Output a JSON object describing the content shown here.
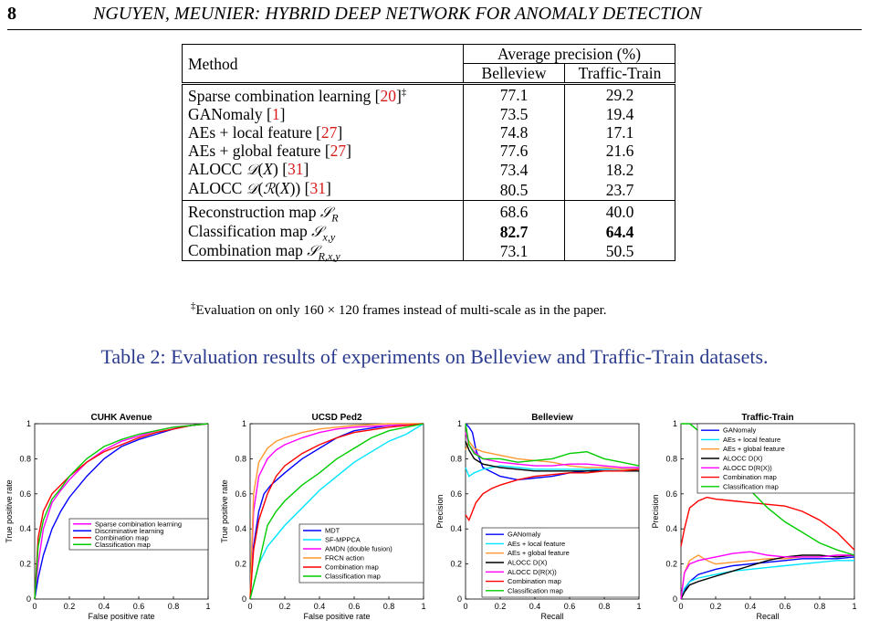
{
  "header": {
    "page_number": "8",
    "running_title": "NGUYEN, MEUNIER: HYBRID DEEP NETWORK FOR ANOMALY DETECTION"
  },
  "table": {
    "col_method": "Method",
    "col_group": "Average precision (%)",
    "col_a": "Belleview",
    "col_b": "Traffic-Train",
    "footnote_mark": "‡",
    "footnote_text": "Evaluation on only 160 × 120 frames instead of multi-scale as in the paper.",
    "rows": [
      {
        "a": "77.1",
        "b": "29.2"
      },
      {
        "a": "73.5",
        "b": "19.4"
      },
      {
        "a": "74.8",
        "b": "17.1"
      },
      {
        "a": "77.6",
        "b": "21.6"
      },
      {
        "a": "73.4",
        "b": "18.2"
      },
      {
        "a": "80.5",
        "b": "23.7"
      },
      {
        "a": "68.6",
        "b": "40.0"
      },
      {
        "a": "82.7",
        "b": "64.4"
      },
      {
        "a": "73.1",
        "b": "50.5"
      }
    ]
  },
  "caption": "Table 2: Evaluation results of experiments on Belleview and Traffic-Train datasets.",
  "chart_data": [
    {
      "type": "line",
      "title": "CUHK Avenue",
      "xlabel": "False positive rate",
      "ylabel": "True positive rate",
      "xlim": [
        0,
        1
      ],
      "ylim": [
        0,
        1
      ],
      "xticks": [
        "0",
        "0.2",
        "0.4",
        "0.6",
        "0.8",
        "1"
      ],
      "yticks": [
        "0",
        "0.2",
        "0.4",
        "0.6",
        "0.8",
        "1"
      ],
      "legend": "bottom-right",
      "series": [
        {
          "name": "Sparse combination learning",
          "color": "#ff00ff",
          "x": [
            0,
            0.02,
            0.05,
            0.1,
            0.15,
            0.2,
            0.3,
            0.4,
            0.5,
            0.6,
            0.7,
            0.8,
            0.9,
            1
          ],
          "y": [
            0,
            0.2,
            0.4,
            0.55,
            0.62,
            0.68,
            0.78,
            0.85,
            0.9,
            0.93,
            0.96,
            0.98,
            0.99,
            1
          ]
        },
        {
          "name": "Discriminative learning",
          "color": "#0000ff",
          "x": [
            0,
            0.02,
            0.05,
            0.1,
            0.15,
            0.2,
            0.3,
            0.4,
            0.5,
            0.6,
            0.7,
            0.8,
            0.9,
            1
          ],
          "y": [
            0,
            0.12,
            0.25,
            0.4,
            0.5,
            0.58,
            0.7,
            0.8,
            0.87,
            0.91,
            0.94,
            0.97,
            0.99,
            1
          ]
        },
        {
          "name": "Combination map",
          "color": "#ff0000",
          "x": [
            0,
            0.02,
            0.05,
            0.1,
            0.15,
            0.2,
            0.3,
            0.4,
            0.5,
            0.6,
            0.7,
            0.8,
            0.9,
            1
          ],
          "y": [
            0,
            0.35,
            0.5,
            0.6,
            0.65,
            0.7,
            0.78,
            0.84,
            0.88,
            0.92,
            0.95,
            0.97,
            0.99,
            1
          ]
        },
        {
          "name": "Classification map",
          "color": "#00cc00",
          "x": [
            0,
            0.02,
            0.05,
            0.1,
            0.15,
            0.2,
            0.3,
            0.4,
            0.5,
            0.6,
            0.7,
            0.8,
            0.9,
            1
          ],
          "y": [
            0,
            0.3,
            0.45,
            0.57,
            0.63,
            0.7,
            0.8,
            0.87,
            0.91,
            0.94,
            0.96,
            0.98,
            0.99,
            1
          ]
        }
      ]
    },
    {
      "type": "line",
      "title": "UCSD Ped2",
      "xlabel": "False positive rate",
      "ylabel": "True positive rate",
      "xlim": [
        0,
        1
      ],
      "ylim": [
        0,
        1
      ],
      "xticks": [
        "0",
        "0.2",
        "0.4",
        "0.6",
        "0.8",
        "1"
      ],
      "yticks": [
        "0",
        "0.2",
        "0.4",
        "0.6",
        "0.8",
        "1"
      ],
      "legend": "bottom-right",
      "series": [
        {
          "name": "MDT",
          "color": "#0000ff",
          "x": [
            0,
            0.02,
            0.05,
            0.08,
            0.12,
            0.2,
            0.3,
            0.4,
            0.5,
            0.6,
            0.8,
            1
          ],
          "y": [
            0,
            0.3,
            0.5,
            0.6,
            0.65,
            0.72,
            0.8,
            0.86,
            0.92,
            0.96,
            0.99,
            1
          ]
        },
        {
          "name": "SF-MPPCA",
          "color": "#00e5ff",
          "x": [
            0,
            0.05,
            0.1,
            0.2,
            0.3,
            0.4,
            0.5,
            0.6,
            0.7,
            0.8,
            0.9,
            1
          ],
          "y": [
            0,
            0.2,
            0.3,
            0.42,
            0.52,
            0.62,
            0.7,
            0.78,
            0.84,
            0.9,
            0.94,
            1
          ]
        },
        {
          "name": "AMDN (double fusion)",
          "color": "#ff00ff",
          "x": [
            0,
            0.02,
            0.05,
            0.1,
            0.15,
            0.2,
            0.3,
            0.4,
            0.5,
            0.6,
            0.8,
            1
          ],
          "y": [
            0,
            0.5,
            0.7,
            0.8,
            0.85,
            0.88,
            0.92,
            0.95,
            0.97,
            0.98,
            0.99,
            1
          ]
        },
        {
          "name": "FRCN action",
          "color": "#ff9933",
          "x": [
            0,
            0.02,
            0.05,
            0.1,
            0.15,
            0.2,
            0.3,
            0.4,
            0.5,
            0.6,
            0.8,
            1
          ],
          "y": [
            0,
            0.6,
            0.78,
            0.86,
            0.9,
            0.92,
            0.95,
            0.97,
            0.98,
            0.99,
            1,
            1
          ]
        },
        {
          "name": "Combination map",
          "color": "#ff0000",
          "x": [
            0,
            0.02,
            0.05,
            0.1,
            0.15,
            0.2,
            0.3,
            0.4,
            0.5,
            0.6,
            0.8,
            1
          ],
          "y": [
            0,
            0.28,
            0.45,
            0.6,
            0.7,
            0.76,
            0.83,
            0.88,
            0.92,
            0.95,
            0.98,
            1
          ]
        },
        {
          "name": "Classification map",
          "color": "#00cc00",
          "x": [
            0,
            0.05,
            0.1,
            0.15,
            0.2,
            0.3,
            0.4,
            0.5,
            0.6,
            0.7,
            0.8,
            1
          ],
          "y": [
            0,
            0.2,
            0.42,
            0.5,
            0.56,
            0.65,
            0.72,
            0.8,
            0.86,
            0.92,
            0.96,
            1
          ]
        }
      ]
    },
    {
      "type": "line",
      "title": "Belleview",
      "xlabel": "Recall",
      "ylabel": "Precision",
      "xlim": [
        0,
        1
      ],
      "ylim": [
        0,
        1
      ],
      "xticks": [
        "0",
        "0.2",
        "0.4",
        "0.6",
        "0.8",
        "1"
      ],
      "yticks": [
        "0",
        "0.2",
        "0.4",
        "0.6",
        "0.8",
        "1"
      ],
      "legend": "bottom-right",
      "series": [
        {
          "name": "GANomaly",
          "color": "#0000ff",
          "x": [
            0,
            0.02,
            0.04,
            0.06,
            0.08,
            0.1,
            0.2,
            0.3,
            0.4,
            0.5,
            0.6,
            0.7,
            0.8,
            0.9,
            1
          ],
          "y": [
            1,
            0.98,
            0.95,
            0.85,
            0.8,
            0.75,
            0.7,
            0.68,
            0.69,
            0.7,
            0.72,
            0.73,
            0.74,
            0.74,
            0.74
          ]
        },
        {
          "name": "AEs + local feature",
          "color": "#00e5ff",
          "x": [
            0,
            0.02,
            0.05,
            0.1,
            0.2,
            0.3,
            0.4,
            0.5,
            0.6,
            0.7,
            0.8,
            0.9,
            1
          ],
          "y": [
            0.75,
            0.7,
            0.72,
            0.74,
            0.76,
            0.75,
            0.74,
            0.74,
            0.74,
            0.74,
            0.74,
            0.74,
            0.74
          ]
        },
        {
          "name": "AEs + global feature",
          "color": "#ff9933",
          "x": [
            0,
            0.02,
            0.05,
            0.1,
            0.2,
            0.3,
            0.4,
            0.5,
            0.6,
            0.7,
            0.8,
            0.9,
            1
          ],
          "y": [
            0.85,
            0.9,
            0.86,
            0.84,
            0.82,
            0.8,
            0.79,
            0.78,
            0.76,
            0.75,
            0.75,
            0.74,
            0.74
          ]
        },
        {
          "name": "ALOCC D(X)",
          "color": "#000000",
          "x": [
            0,
            0.02,
            0.05,
            0.1,
            0.2,
            0.3,
            0.4,
            0.5,
            0.6,
            0.7,
            0.8,
            0.9,
            1
          ],
          "y": [
            0.9,
            0.85,
            0.8,
            0.77,
            0.75,
            0.74,
            0.73,
            0.73,
            0.73,
            0.73,
            0.73,
            0.73,
            0.73
          ]
        },
        {
          "name": "ALOCC D(R(X))",
          "color": "#ff00ff",
          "x": [
            0,
            0.02,
            0.05,
            0.1,
            0.2,
            0.3,
            0.4,
            0.5,
            0.6,
            0.7,
            0.8,
            0.9,
            1
          ],
          "y": [
            0.95,
            0.88,
            0.84,
            0.8,
            0.78,
            0.77,
            0.76,
            0.76,
            0.77,
            0.77,
            0.76,
            0.75,
            0.75
          ]
        },
        {
          "name": "Combination map",
          "color": "#ff0000",
          "x": [
            0,
            0.02,
            0.04,
            0.06,
            0.1,
            0.15,
            0.2,
            0.3,
            0.4,
            0.5,
            0.6,
            0.7,
            0.8,
            0.9,
            1
          ],
          "y": [
            0.48,
            0.45,
            0.5,
            0.55,
            0.6,
            0.63,
            0.65,
            0.68,
            0.7,
            0.71,
            0.72,
            0.72,
            0.73,
            0.73,
            0.74
          ]
        },
        {
          "name": "Classification map",
          "color": "#00cc00",
          "x": [
            0,
            0.02,
            0.05,
            0.1,
            0.2,
            0.3,
            0.4,
            0.5,
            0.6,
            0.7,
            0.8,
            0.9,
            1
          ],
          "y": [
            1,
            0.88,
            0.83,
            0.8,
            0.8,
            0.78,
            0.79,
            0.8,
            0.83,
            0.84,
            0.8,
            0.78,
            0.76
          ]
        }
      ]
    },
    {
      "type": "line",
      "title": "Traffic-Train",
      "xlabel": "Recall",
      "ylabel": "Precision",
      "xlim": [
        0,
        1
      ],
      "ylim": [
        0,
        1
      ],
      "xticks": [
        "0",
        "0.2",
        "0.4",
        "0.6",
        "0.8",
        "1"
      ],
      "yticks": [
        "0",
        "0.2",
        "0.4",
        "0.6",
        "0.8",
        "1"
      ],
      "legend": "top-right",
      "series": [
        {
          "name": "GANomaly",
          "color": "#0000ff",
          "x": [
            0,
            0.02,
            0.05,
            0.1,
            0.2,
            0.3,
            0.4,
            0.5,
            0.6,
            0.7,
            0.8,
            0.9,
            1
          ],
          "y": [
            0,
            0.05,
            0.1,
            0.14,
            0.17,
            0.19,
            0.2,
            0.21,
            0.22,
            0.23,
            0.23,
            0.23,
            0.24
          ]
        },
        {
          "name": "AEs + local feature",
          "color": "#00e5ff",
          "x": [
            0,
            0.02,
            0.05,
            0.1,
            0.2,
            0.3,
            0.4,
            0.5,
            0.6,
            0.7,
            0.8,
            0.9,
            1
          ],
          "y": [
            0,
            0.06,
            0.1,
            0.12,
            0.14,
            0.16,
            0.17,
            0.18,
            0.19,
            0.2,
            0.21,
            0.22,
            0.22
          ]
        },
        {
          "name": "AEs + global feature",
          "color": "#ff9933",
          "x": [
            0,
            0.02,
            0.05,
            0.1,
            0.15,
            0.2,
            0.3,
            0.4,
            0.5,
            0.6,
            0.7,
            0.8,
            0.9,
            1
          ],
          "y": [
            0,
            0.15,
            0.22,
            0.25,
            0.22,
            0.2,
            0.21,
            0.22,
            0.23,
            0.23,
            0.24,
            0.24,
            0.25,
            0.25
          ]
        },
        {
          "name": "ALOCC D(X)",
          "color": "#000000",
          "x": [
            0,
            0.02,
            0.05,
            0.1,
            0.2,
            0.3,
            0.4,
            0.5,
            0.6,
            0.7,
            0.8,
            0.9,
            1
          ],
          "y": [
            0,
            0.04,
            0.08,
            0.1,
            0.13,
            0.16,
            0.19,
            0.22,
            0.24,
            0.25,
            0.25,
            0.24,
            0.25
          ]
        },
        {
          "name": "ALOCC D(R(X))",
          "color": "#ff00ff",
          "x": [
            0,
            0.02,
            0.05,
            0.1,
            0.2,
            0.3,
            0.4,
            0.5,
            0.6,
            0.7,
            0.8,
            0.9,
            1
          ],
          "y": [
            0,
            0.15,
            0.2,
            0.22,
            0.24,
            0.26,
            0.27,
            0.25,
            0.24,
            0.24,
            0.24,
            0.25,
            0.25
          ]
        },
        {
          "name": "Combination map",
          "color": "#ff0000",
          "x": [
            0,
            0.02,
            0.05,
            0.1,
            0.15,
            0.2,
            0.3,
            0.4,
            0.5,
            0.6,
            0.7,
            0.8,
            0.9,
            1
          ],
          "y": [
            0.3,
            0.4,
            0.52,
            0.56,
            0.58,
            0.57,
            0.56,
            0.55,
            0.54,
            0.53,
            0.5,
            0.45,
            0.38,
            0.28
          ]
        },
        {
          "name": "Classification map",
          "color": "#00cc00",
          "x": [
            0,
            0.05,
            0.1,
            0.15,
            0.2,
            0.3,
            0.4,
            0.5,
            0.6,
            0.7,
            0.8,
            0.9,
            1
          ],
          "y": [
            1,
            1,
            0.96,
            0.9,
            0.84,
            0.75,
            0.62,
            0.52,
            0.44,
            0.38,
            0.32,
            0.28,
            0.25
          ]
        }
      ]
    }
  ]
}
